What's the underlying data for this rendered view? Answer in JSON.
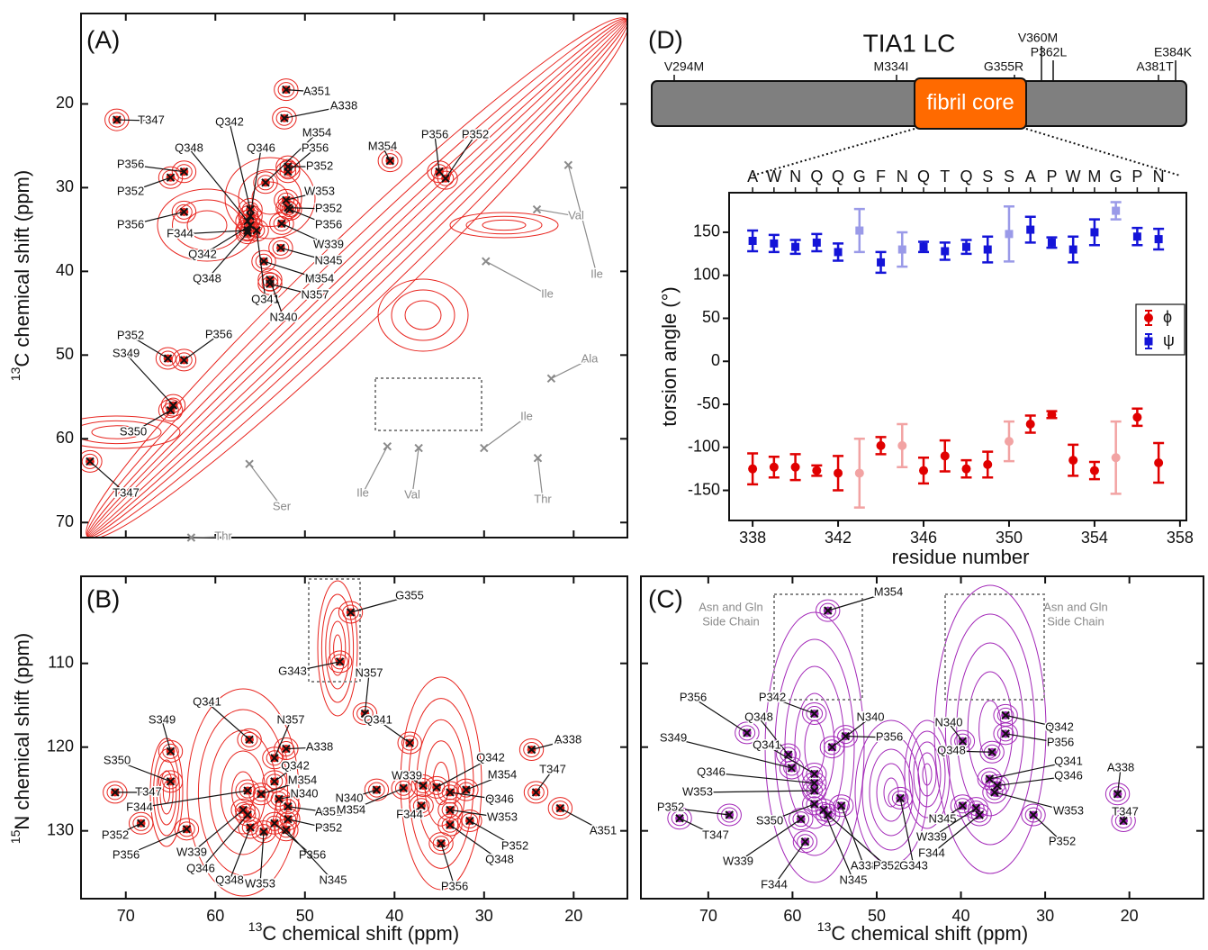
{
  "chart_data": [
    {
      "type": "spectrum",
      "label": "(A)",
      "ylabel": "13C chemical shift (ppm)",
      "xlim": [
        75.0,
        14.0
      ],
      "ylim": [
        9.2,
        71.8
      ],
      "xticks": [
        70,
        60,
        50,
        40,
        30,
        20
      ],
      "xtick_labels": false,
      "yticks": [
        20,
        30,
        40,
        50,
        60,
        70
      ],
      "color": "#e8251f",
      "annotations": [
        {
          "text": "A351",
          "x": 52.1,
          "y": 18.3
        },
        {
          "text": "A338",
          "x": 52.3,
          "y": 21.7
        },
        {
          "text": "T347",
          "x": 71.0,
          "y": 21.9
        },
        {
          "text": "Q342",
          "x": 56.1,
          "y": 32.6
        },
        {
          "text": "M354",
          "x": 54.4,
          "y": 29.4
        },
        {
          "text": "Q348",
          "x": 56.4,
          "y": 34.0
        },
        {
          "text": "Q346",
          "x": 56.1,
          "y": 33.4
        },
        {
          "text": "P356",
          "x": 51.9,
          "y": 28.1
        },
        {
          "text": "M354",
          "x": 40.5,
          "y": 26.8
        },
        {
          "text": "P356",
          "x": 35.0,
          "y": 28.1
        },
        {
          "text": "P352",
          "x": 34.3,
          "y": 28.9
        },
        {
          "text": "P356",
          "x": 63.5,
          "y": 28.1
        },
        {
          "text": "P352",
          "x": 51.9,
          "y": 27.5
        },
        {
          "text": "P352",
          "x": 65.0,
          "y": 28.8
        },
        {
          "text": "W353",
          "x": 52.1,
          "y": 31.5
        },
        {
          "text": "P352",
          "x": 51.9,
          "y": 32.4
        },
        {
          "text": "P356",
          "x": 63.5,
          "y": 32.9
        },
        {
          "text": "P356",
          "x": 51.7,
          "y": 32.6
        },
        {
          "text": "F344",
          "x": 56.4,
          "y": 35.1
        },
        {
          "text": "W339",
          "x": 52.6,
          "y": 34.3
        },
        {
          "text": "Q342",
          "x": 56.1,
          "y": 34.5
        },
        {
          "text": "N345",
          "x": 52.7,
          "y": 37.2
        },
        {
          "text": "M354",
          "x": 54.6,
          "y": 38.8
        },
        {
          "text": "Q348",
          "x": 56.4,
          "y": 35.4
        },
        {
          "text": "N357",
          "x": 53.9,
          "y": 41.5
        },
        {
          "text": "Q341",
          "x": 55.4,
          "y": 35.1
        },
        {
          "text": "N340",
          "x": 53.9,
          "y": 41.0
        },
        {
          "text": "P352",
          "x": 65.3,
          "y": 50.4
        },
        {
          "text": "P356",
          "x": 63.5,
          "y": 50.6
        },
        {
          "text": "S349",
          "x": 64.7,
          "y": 56.0
        },
        {
          "text": "S350",
          "x": 65.0,
          "y": 56.6
        },
        {
          "text": "T347",
          "x": 74.0,
          "y": 62.7
        },
        {
          "text": "Ile",
          "x": 20.6,
          "y": 27.3,
          "color": "#8a8a8a"
        },
        {
          "text": "Val",
          "x": 24.1,
          "y": 32.6,
          "color": "#8a8a8a"
        },
        {
          "text": "Ile",
          "x": 29.8,
          "y": 38.8,
          "color": "#8a8a8a"
        },
        {
          "text": "Ala",
          "x": 22.5,
          "y": 52.8,
          "color": "#8a8a8a"
        },
        {
          "text": "Ile",
          "x": 30.0,
          "y": 61.1,
          "color": "#8a8a8a"
        },
        {
          "text": "Ile",
          "x": 40.8,
          "y": 60.9,
          "color": "#8a8a8a"
        },
        {
          "text": "Val",
          "x": 37.3,
          "y": 61.1,
          "color": "#8a8a8a"
        },
        {
          "text": "Thr",
          "x": 24.0,
          "y": 62.3,
          "color": "#8a8a8a"
        },
        {
          "text": "Ser",
          "x": 56.2,
          "y": 63.0,
          "color": "#8a8a8a"
        },
        {
          "text": "Thr",
          "x": 62.7,
          "y": 71.8,
          "color": "#8a8a8a"
        }
      ]
    },
    {
      "type": "spectrum",
      "label": "(B)",
      "ylabel": "15N chemical shift (ppm)",
      "xlabel": "13C chemical shift (ppm)",
      "xlim": [
        75.0,
        14.0
      ],
      "ylim": [
        99.6,
        138.1
      ],
      "xticks": [
        70,
        60,
        50,
        40,
        30,
        20
      ],
      "yticks": [
        110,
        120,
        130
      ],
      "color": "#e8251f",
      "annotations": [
        {
          "text": "G355",
          "x": 44.9,
          "y": 103.9
        },
        {
          "text": "G343",
          "x": 46.1,
          "y": 109.8
        },
        {
          "text": "Q341",
          "x": 56.2,
          "y": 119.1
        },
        {
          "text": "N357",
          "x": 53.4,
          "y": 121.3
        },
        {
          "text": "N357",
          "x": 43.3,
          "y": 116.0
        },
        {
          "text": "Q341",
          "x": 38.3,
          "y": 119.5
        },
        {
          "text": "S349",
          "x": 65.0,
          "y": 120.5
        },
        {
          "text": "S350",
          "x": 65.0,
          "y": 124.1
        },
        {
          "text": "A338",
          "x": 52.1,
          "y": 120.2
        },
        {
          "text": "A338",
          "x": 24.7,
          "y": 120.3
        },
        {
          "text": "Q342",
          "x": 53.4,
          "y": 124.1
        },
        {
          "text": "M354",
          "x": 54.9,
          "y": 125.6
        },
        {
          "text": "N340",
          "x": 52.9,
          "y": 126.2
        },
        {
          "text": "T347",
          "x": 71.2,
          "y": 125.4
        },
        {
          "text": "T347",
          "x": 24.2,
          "y": 125.4
        },
        {
          "text": "F344",
          "x": 56.4,
          "y": 125.2
        },
        {
          "text": "A351",
          "x": 51.9,
          "y": 127.1
        },
        {
          "text": "A351",
          "x": 21.5,
          "y": 127.3
        },
        {
          "text": "P352",
          "x": 51.9,
          "y": 128.6
        },
        {
          "text": "P352",
          "x": 68.3,
          "y": 129.1
        },
        {
          "text": "P352",
          "x": 31.6,
          "y": 128.8
        },
        {
          "text": "W339",
          "x": 56.9,
          "y": 127.5
        },
        {
          "text": "P356",
          "x": 63.2,
          "y": 129.8
        },
        {
          "text": "P356",
          "x": 53.4,
          "y": 129.1
        },
        {
          "text": "P356",
          "x": 34.8,
          "y": 131.5
        },
        {
          "text": "Q346",
          "x": 56.4,
          "y": 128.1
        },
        {
          "text": "Q348",
          "x": 56.1,
          "y": 129.6
        },
        {
          "text": "W353",
          "x": 54.6,
          "y": 130.1
        },
        {
          "text": "N345",
          "x": 52.1,
          "y": 129.9
        },
        {
          "text": "W339",
          "x": 36.8,
          "y": 124.6
        },
        {
          "text": "N340",
          "x": 42.0,
          "y": 125.1
        },
        {
          "text": "M354",
          "x": 39.0,
          "y": 124.9
        },
        {
          "text": "F344",
          "x": 37.0,
          "y": 127.0
        },
        {
          "text": "Q342",
          "x": 35.3,
          "y": 124.8
        },
        {
          "text": "M354",
          "x": 32.0,
          "y": 125.1
        },
        {
          "text": "Q346",
          "x": 33.8,
          "y": 125.4
        },
        {
          "text": "W353",
          "x": 33.8,
          "y": 127.5
        },
        {
          "text": "Q348",
          "x": 33.8,
          "y": 129.3
        }
      ]
    },
    {
      "type": "spectrum",
      "label": "(C)",
      "xlabel": "13C chemical shift (ppm)",
      "xlim": [
        78.0,
        11.2
      ],
      "ylim": [
        99.6,
        138.1
      ],
      "xticks": [
        70,
        60,
        50,
        40,
        30,
        20
      ],
      "yticks": [
        110,
        120,
        130
      ],
      "ytick_labels": false,
      "color": "#a328b8",
      "notes": [
        [
          "Asn and Gln",
          "Side Chain"
        ],
        [
          "Asn and Gln",
          "Side Chain"
        ]
      ],
      "annotations": [
        {
          "text": "M354",
          "x": 55.8,
          "y": 103.7
        },
        {
          "text": "P356",
          "x": 65.4,
          "y": 118.3
        },
        {
          "text": "P342",
          "x": 57.4,
          "y": 116.0
        },
        {
          "text": "Q348",
          "x": 60.5,
          "y": 120.9
        },
        {
          "text": "N340",
          "x": 55.3,
          "y": 120.0
        },
        {
          "text": "P356",
          "x": 53.7,
          "y": 118.7
        },
        {
          "text": "N340",
          "x": 39.8,
          "y": 119.3
        },
        {
          "text": "Q342",
          "x": 34.7,
          "y": 116.2
        },
        {
          "text": "P356",
          "x": 34.7,
          "y": 118.4
        },
        {
          "text": "S349",
          "x": 60.1,
          "y": 122.5
        },
        {
          "text": "Q348",
          "x": 36.3,
          "y": 120.6
        },
        {
          "text": "Q341",
          "x": 57.4,
          "y": 123.2
        },
        {
          "text": "Q341",
          "x": 36.6,
          "y": 123.8
        },
        {
          "text": "Q346",
          "x": 57.4,
          "y": 124.3
        },
        {
          "text": "Q346",
          "x": 35.7,
          "y": 124.6
        },
        {
          "text": "W353",
          "x": 57.4,
          "y": 125.2
        },
        {
          "text": "W353",
          "x": 36.0,
          "y": 125.4
        },
        {
          "text": "P352",
          "x": 67.5,
          "y": 128.1
        },
        {
          "text": "S350",
          "x": 57.4,
          "y": 126.8
        },
        {
          "text": "N345",
          "x": 39.8,
          "y": 127.0
        },
        {
          "text": "W339",
          "x": 38.2,
          "y": 127.3
        },
        {
          "text": "F344",
          "x": 37.8,
          "y": 128.1
        },
        {
          "text": "P352",
          "x": 31.4,
          "y": 128.1
        },
        {
          "text": "T347",
          "x": 73.4,
          "y": 128.5
        },
        {
          "text": "T347",
          "x": 20.7,
          "y": 128.8
        },
        {
          "text": "A338",
          "x": 21.4,
          "y": 125.6
        },
        {
          "text": "A338",
          "x": 54.2,
          "y": 127.0
        },
        {
          "text": "W339",
          "x": 59.0,
          "y": 128.6
        },
        {
          "text": "P352",
          "x": 55.8,
          "y": 128.1
        },
        {
          "text": "G343",
          "x": 47.2,
          "y": 126.1
        },
        {
          "text": "N345",
          "x": 56.3,
          "y": 127.5
        },
        {
          "text": "F344",
          "x": 58.5,
          "y": 131.3
        }
      ]
    },
    {
      "type": "domain",
      "label": "(D)",
      "title": "TIA1 LC",
      "region_label": "fibril core",
      "mutations": [
        "V294M",
        "M334I",
        "G355R",
        "V360M",
        "P362L",
        "A381T",
        "E384K"
      ]
    },
    {
      "type": "scatter",
      "xlabel": "residue number",
      "ylabel": "torsion angle (°)",
      "x": [
        338,
        339,
        340,
        341,
        342,
        343,
        344,
        345,
        346,
        347,
        348,
        349,
        350,
        351,
        352,
        353,
        354,
        355,
        356,
        357
      ],
      "residues": [
        "A",
        "W",
        "N",
        "Q",
        "Q",
        "G",
        "F",
        "N",
        "Q",
        "T",
        "Q",
        "S",
        "S",
        "A",
        "P",
        "W",
        "M",
        "G",
        "P",
        "N"
      ],
      "xlim": [
        336.9,
        358.3
      ],
      "ylim": [
        -185,
        196
      ],
      "xticks": [
        338,
        342,
        346,
        350,
        354,
        358
      ],
      "yticks": [
        -150,
        -100,
        -50,
        0,
        50,
        100,
        150
      ],
      "legend": "center right",
      "series": [
        {
          "name": "ϕ",
          "marker": "circle",
          "color": "#e00000",
          "values": [
            -125,
            -123,
            -123,
            -127,
            -130,
            -130,
            -98,
            -98,
            -127,
            -110,
            -125,
            -120,
            -93,
            -73,
            -62,
            -115,
            -127,
            -112,
            -65,
            -118
          ],
          "errors": [
            18,
            12,
            15,
            6,
            20,
            40,
            10,
            25,
            15,
            18,
            10,
            15,
            23,
            10,
            4,
            18,
            10,
            42,
            10,
            23
          ],
          "colors": [
            "#e00000",
            "#e00000",
            "#e00000",
            "#e00000",
            "#e00000",
            "#f2a3a3",
            "#e00000",
            "#f2a3a3",
            "#e00000",
            "#e00000",
            "#e00000",
            "#e00000",
            "#f2a3a3",
            "#e00000",
            "#e00000",
            "#e00000",
            "#e00000",
            "#f2a3a3",
            "#e00000",
            "#e00000"
          ]
        },
        {
          "name": "ψ",
          "marker": "square",
          "color": "#1414d8",
          "values": [
            140,
            137,
            133,
            138,
            127,
            152,
            115,
            130,
            133,
            128,
            133,
            130,
            148,
            153,
            138,
            130,
            150,
            175,
            145,
            142
          ],
          "errors": [
            12,
            10,
            8,
            10,
            10,
            25,
            12,
            20,
            6,
            10,
            8,
            15,
            32,
            15,
            6,
            15,
            15,
            10,
            10,
            12
          ],
          "colors": [
            "#1414d8",
            "#1414d8",
            "#1414d8",
            "#1414d8",
            "#1414d8",
            "#9a9ae8",
            "#1414d8",
            "#9a9ae8",
            "#1414d8",
            "#1414d8",
            "#1414d8",
            "#1414d8",
            "#9a9ae8",
            "#1414d8",
            "#1414d8",
            "#1414d8",
            "#1414d8",
            "#9a9ae8",
            "#1414d8",
            "#1414d8"
          ]
        }
      ]
    }
  ]
}
